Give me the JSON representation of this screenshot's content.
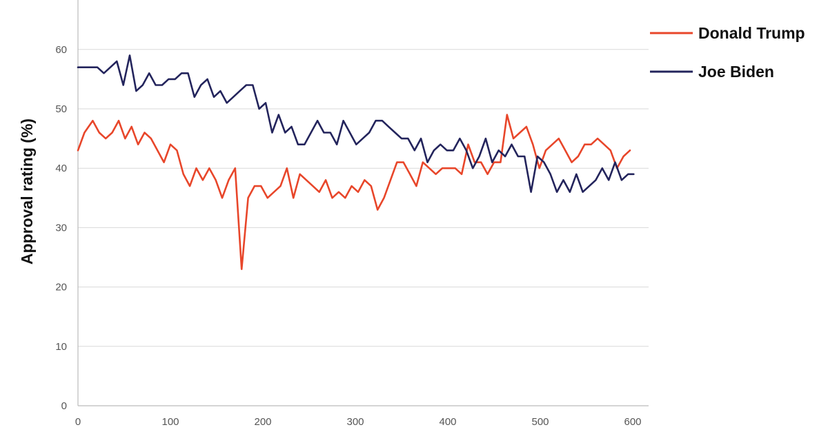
{
  "chart_data": {
    "type": "line",
    "title": "",
    "xlabel": "",
    "ylabel": "Approval rating (%)",
    "xlim": [
      0,
      610
    ],
    "ylim": [
      0,
      70
    ],
    "x_ticks": [
      0,
      100,
      200,
      300,
      400,
      500,
      600
    ],
    "y_ticks": [
      0,
      10,
      20,
      30,
      40,
      50,
      60
    ],
    "grid": "horizontal",
    "legend_position": "top-right",
    "series": [
      {
        "name": "Donald Trump",
        "color": "#e8462a",
        "x": [
          0,
          7,
          16,
          23,
          30,
          37,
          44,
          51,
          58,
          65,
          72,
          79,
          86,
          93,
          100,
          107,
          114,
          121,
          128,
          135,
          142,
          149,
          156,
          163,
          170,
          177,
          184,
          191,
          198,
          205,
          212,
          219,
          226,
          233,
          240,
          247,
          254,
          261,
          268,
          275,
          282,
          289,
          296,
          303,
          310,
          317,
          324,
          331,
          338,
          345,
          352,
          359,
          366,
          373,
          380,
          387,
          394,
          401,
          408,
          415,
          422,
          429,
          436,
          443,
          450,
          457,
          464,
          471,
          478,
          485,
          492,
          499,
          506,
          513,
          520,
          527,
          534,
          541,
          548,
          555,
          562,
          569,
          576,
          583,
          590,
          597
        ],
        "values": [
          43,
          46,
          48,
          46,
          45,
          46,
          48,
          45,
          47,
          44,
          46,
          45,
          43,
          41,
          44,
          43,
          39,
          37,
          40,
          38,
          40,
          38,
          35,
          38,
          40,
          23,
          35,
          37,
          37,
          35,
          36,
          37,
          40,
          35,
          39,
          38,
          37,
          36,
          38,
          35,
          36,
          35,
          37,
          36,
          38,
          37,
          33,
          35,
          38,
          41,
          41,
          39,
          37,
          41,
          40,
          39,
          40,
          40,
          40,
          39,
          44,
          41,
          41,
          39,
          41,
          41,
          49,
          45,
          46,
          47,
          44,
          40,
          43,
          44,
          45,
          43,
          41,
          42,
          44,
          44,
          45,
          44,
          43,
          40,
          42,
          43
        ]
      },
      {
        "name": "Joe Biden",
        "color": "#23245c",
        "x": [
          0,
          7,
          14,
          21,
          28,
          35,
          42,
          49,
          56,
          63,
          70,
          77,
          84,
          91,
          98,
          105,
          112,
          119,
          126,
          133,
          140,
          147,
          154,
          161,
          168,
          175,
          182,
          189,
          196,
          203,
          210,
          217,
          224,
          231,
          238,
          245,
          252,
          259,
          266,
          273,
          280,
          287,
          294,
          301,
          308,
          315,
          322,
          329,
          336,
          343,
          350,
          357,
          364,
          371,
          378,
          385,
          392,
          399,
          406,
          413,
          420,
          427,
          434,
          441,
          448,
          455,
          462,
          469,
          476,
          483,
          490,
          497,
          504,
          511,
          518,
          525,
          532,
          539,
          546,
          553,
          560,
          567,
          574,
          581,
          588,
          595,
          601
        ],
        "values": [
          57,
          57,
          57,
          57,
          56,
          57,
          58,
          54,
          59,
          53,
          54,
          56,
          54,
          54,
          55,
          55,
          56,
          56,
          52,
          54,
          55,
          52,
          53,
          51,
          52,
          53,
          54,
          54,
          50,
          51,
          46,
          49,
          46,
          47,
          44,
          44,
          46,
          48,
          46,
          46,
          44,
          48,
          46,
          44,
          45,
          46,
          48,
          48,
          47,
          46,
          45,
          45,
          43,
          45,
          41,
          43,
          44,
          43,
          43,
          45,
          43,
          40,
          42,
          45,
          41,
          43,
          42,
          44,
          42,
          42,
          36,
          42,
          41,
          39,
          36,
          38,
          36,
          39,
          36,
          37,
          38,
          40,
          38,
          41,
          38,
          39,
          39
        ]
      }
    ]
  }
}
